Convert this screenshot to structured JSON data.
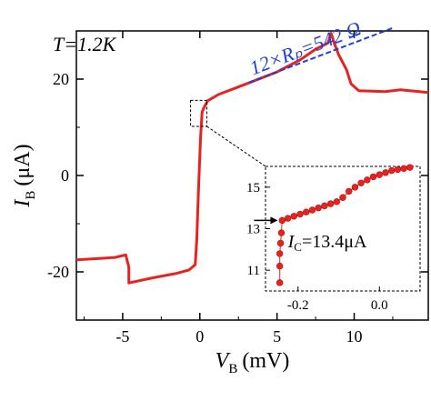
{
  "chart_data": [
    {
      "type": "line",
      "annotation_temperature": "T=1.2K",
      "annotation_slope": "12×Rₚ=542 Ω",
      "xlabel": "V",
      "xlabel_sub": "B",
      "xlabel_unit": "(mV)",
      "ylabel": "I",
      "ylabel_sub": "B",
      "ylabel_unit": "(μA)",
      "xlim": [
        -8,
        14.8
      ],
      "ylim": [
        -30,
        30
      ],
      "xticks": [
        -5,
        0,
        5,
        10
      ],
      "yticks": [
        -20,
        0,
        20
      ],
      "xtick_labels": [
        "-5",
        "0",
        "5",
        "10"
      ],
      "ytick_labels": [
        "-20",
        "0",
        "20"
      ],
      "series_color": "#e8231f",
      "fit_color": "#1f3fd6",
      "series": [
        {
          "x": [
            -8,
            -6.5,
            -5.5,
            -4.8,
            -4.6,
            -4.6,
            -3,
            -1.5,
            -0.7,
            -0.3,
            -0.2,
            -0.1,
            0.05,
            0.15,
            0.3,
            0.5,
            1.2,
            3,
            5,
            6.5,
            7.5,
            8.3,
            8.5,
            8.7,
            9,
            9.5,
            9.8,
            10.3,
            12,
            13,
            14.8
          ],
          "y": [
            -17.5,
            -17.2,
            -17,
            -16.5,
            -19,
            -22.3,
            -21.2,
            -20.3,
            -19.6,
            -18.5,
            -13.4,
            -4,
            8,
            13.2,
            14.3,
            15.5,
            16.8,
            19,
            21.5,
            24,
            26.2,
            27.5,
            29.5,
            27.5,
            25,
            22,
            19,
            17.6,
            17.4,
            17.8,
            17.2
          ]
        }
      ],
      "fit_line": {
        "x": [
          3.2,
          12.5
        ],
        "y": [
          19.3,
          30.6
        ]
      }
    },
    {
      "type": "scatter",
      "inset": true,
      "annotation_ic": "I",
      "annotation_ic_sub": "C",
      "annotation_ic_value": "=13.4μA",
      "xlim": [
        -0.28,
        0.1
      ],
      "ylim": [
        10,
        16
      ],
      "xticks": [
        -0.2,
        0.0
      ],
      "yticks": [
        11,
        13,
        15
      ],
      "xtick_labels": [
        "-0.2",
        "0.0"
      ],
      "ytick_labels": [
        "11",
        "13",
        "15"
      ],
      "series": [
        {
          "x": [
            -0.245,
            -0.245,
            -0.245,
            -0.243,
            -0.241,
            -0.239,
            -0.225,
            -0.21,
            -0.195,
            -0.18,
            -0.165,
            -0.15,
            -0.135,
            -0.12,
            -0.105,
            -0.09,
            -0.075,
            -0.06,
            -0.045,
            -0.03,
            -0.015,
            0.0,
            0.015,
            0.03,
            0.045,
            0.06,
            0.075
          ],
          "y": [
            10.4,
            11.2,
            11.8,
            12.3,
            12.8,
            13.4,
            13.5,
            13.6,
            13.7,
            13.8,
            13.9,
            14.0,
            14.1,
            14.2,
            14.3,
            14.5,
            14.8,
            15.0,
            15.2,
            15.35,
            15.5,
            15.6,
            15.7,
            15.8,
            15.85,
            15.9,
            15.95
          ]
        }
      ]
    }
  ]
}
